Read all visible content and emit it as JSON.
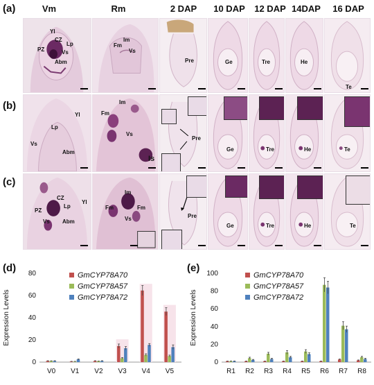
{
  "panels": {
    "a": "(a)",
    "b": "(b)",
    "c": "(c)",
    "d": "(d)",
    "e": "(e)"
  },
  "columns": [
    "Vm",
    "Rm",
    "2 DAP",
    "10 DAP",
    "12 DAP",
    "14DAP",
    "16 DAP"
  ],
  "labels": {
    "a_vm": [
      "Yl",
      "CZ",
      "Lp",
      "PZ",
      "Vs",
      "Abm"
    ],
    "a_rm": [
      "Fm",
      "Im",
      "Vs"
    ],
    "a_2dap": [
      "Pre"
    ],
    "a_10dap": [
      "Ge"
    ],
    "a_12dap": [
      "Tre"
    ],
    "a_14dap": [
      "He"
    ],
    "a_16dap": [
      "Te"
    ],
    "b_vm": [
      "Yl",
      "Lp",
      "Vs",
      "Abm"
    ],
    "b_rm": [
      "Im",
      "Fm",
      "Vs",
      "Is"
    ],
    "b_2dap": [
      "Pre"
    ],
    "b_10dap": [
      "Ge"
    ],
    "b_12dap": [
      "Tre"
    ],
    "b_14dap": [
      "He"
    ],
    "b_16dap": [
      "Te"
    ],
    "c_vm": [
      "CZ",
      "PZ",
      "Lp",
      "Yl",
      "Vs",
      "Abm"
    ],
    "c_rm": [
      "Im",
      "Fm",
      "Fm",
      "Vs"
    ],
    "c_2dap": [
      "Pre"
    ],
    "c_10dap": [
      "Ge"
    ],
    "c_12dap": [
      "Tre"
    ],
    "c_14dap": [
      "He"
    ],
    "c_16dap": [
      "Te"
    ]
  },
  "colors": {
    "gm70": "#c0504d",
    "gm57": "#9bbb59",
    "gm72": "#4f81bd",
    "tissue_bg": "#ecdde9",
    "stain": "#4a1a45"
  },
  "chart_data": [
    {
      "type": "bar",
      "ylabel": "Expression Levels",
      "xlabel": "",
      "ylim": [
        0,
        80
      ],
      "yticks": [
        0,
        20,
        40,
        60,
        80
      ],
      "categories": [
        "V0",
        "V1",
        "V2",
        "V3",
        "V4",
        "V5"
      ],
      "series": [
        {
          "name": "GmCYP78A70",
          "values": [
            1,
            0.5,
            1,
            14.5,
            64.5,
            45.5
          ],
          "errors": [
            0.3,
            0.2,
            0.3,
            1.8,
            4.5,
            3.5
          ]
        },
        {
          "name": "GmCYP78A57",
          "values": [
            1,
            0.5,
            0.8,
            3.5,
            6.5,
            5.5
          ],
          "errors": [
            0.2,
            0.2,
            0.2,
            0.6,
            1.0,
            0.8
          ]
        },
        {
          "name": "GmCYP78A72",
          "values": [
            1,
            2.5,
            1,
            12.5,
            15.5,
            13.5
          ],
          "errors": [
            0.3,
            0.4,
            0.3,
            1.5,
            1.2,
            2.0
          ]
        }
      ],
      "highlight": [
        3,
        4,
        5
      ]
    },
    {
      "type": "bar",
      "ylabel": "Expression Levels",
      "xlabel": "",
      "ylim": [
        0,
        100
      ],
      "yticks": [
        0,
        20,
        40,
        60,
        80,
        100
      ],
      "categories": [
        "R1",
        "R2",
        "R3",
        "R4",
        "R5",
        "R6",
        "R7",
        "R8"
      ],
      "series": [
        {
          "name": "GmCYP78A70",
          "values": [
            1,
            1,
            1,
            1,
            1,
            1,
            3,
            2
          ],
          "errors": [
            0.2,
            0.2,
            0.2,
            0.2,
            0.2,
            0.2,
            0.5,
            0.4
          ]
        },
        {
          "name": "GmCYP78A57",
          "values": [
            1,
            4.5,
            9.5,
            11,
            12,
            87,
            41,
            5.5
          ],
          "errors": [
            0.3,
            1,
            1.5,
            2,
            2,
            8,
            4.5,
            1
          ]
        },
        {
          "name": "GmCYP78A72",
          "values": [
            1,
            2.5,
            3.5,
            5.5,
            9,
            84,
            37,
            3.5
          ],
          "errors": [
            0.3,
            0.5,
            0.8,
            1,
            1.5,
            7,
            3.5,
            0.8
          ]
        }
      ]
    }
  ]
}
